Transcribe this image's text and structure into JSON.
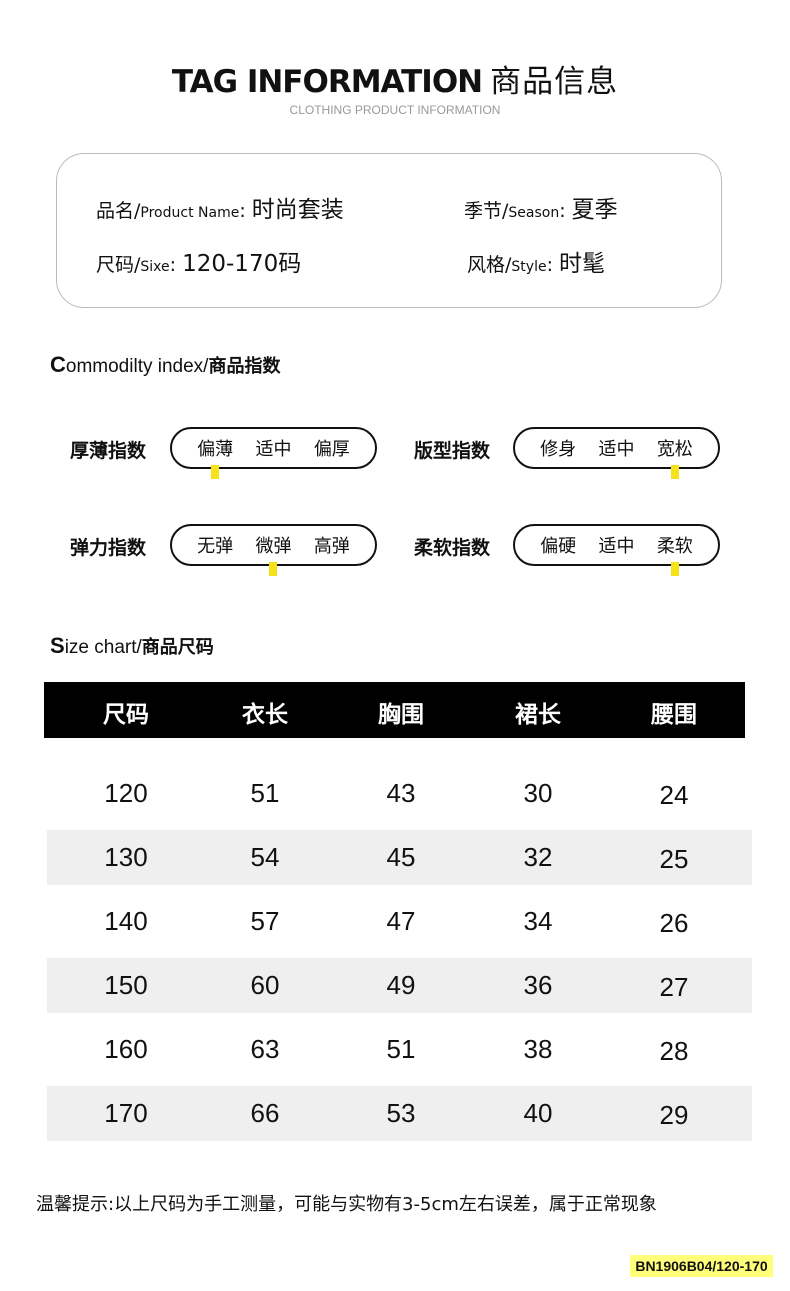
{
  "header": {
    "title_en": "TAG INFORMATION",
    "title_cn": "商品信息",
    "subtitle": "CLOTHING PRODUCT INFORMATION"
  },
  "info": [
    {
      "cn": "品名/",
      "en": "Product Name",
      "value": "时尚套装"
    },
    {
      "cn": "季节/",
      "en": "Season",
      "value": "夏季"
    },
    {
      "cn": "尺码/",
      "en": "Sixe",
      "value": "120-170码"
    },
    {
      "cn": "风格/",
      "en": "Style",
      "value": "时髦"
    }
  ],
  "index_section": {
    "first": "C",
    "rest": "ommodilty index/",
    "cn": "商品指数"
  },
  "indices": [
    {
      "label": "厚薄指数",
      "options": [
        "偏薄",
        "适中",
        "偏厚"
      ],
      "selected": "偏薄"
    },
    {
      "label": "版型指数",
      "options": [
        "修身",
        "适中",
        "宽松"
      ],
      "selected": "宽松"
    },
    {
      "label": "弹力指数",
      "options": [
        "无弹",
        "微弹",
        "高弹"
      ],
      "selected": "微弹"
    },
    {
      "label": "柔软指数",
      "options": [
        "偏硬",
        "适中",
        "柔软"
      ],
      "selected": "柔软"
    }
  ],
  "marker_color": "#f5e21a",
  "size_section": {
    "first": "S",
    "rest": "ize chart/",
    "cn": "商品尺码"
  },
  "table": {
    "headers": [
      "尺码",
      "衣长",
      "胸围",
      "裙长",
      "腰围"
    ],
    "rows": [
      [
        "120",
        "51",
        "43",
        "30",
        "24"
      ],
      [
        "130",
        "54",
        "45",
        "32",
        "25"
      ],
      [
        "140",
        "57",
        "47",
        "34",
        "26"
      ],
      [
        "150",
        "60",
        "49",
        "36",
        "27"
      ],
      [
        "160",
        "63",
        "51",
        "38",
        "28"
      ],
      [
        "170",
        "66",
        "53",
        "40",
        "29"
      ]
    ]
  },
  "note": "温馨提示:以上尺码为手工测量，可能与实物有3-5cm左右误差，属于正常现象",
  "code": "BN1906B04/120-170"
}
